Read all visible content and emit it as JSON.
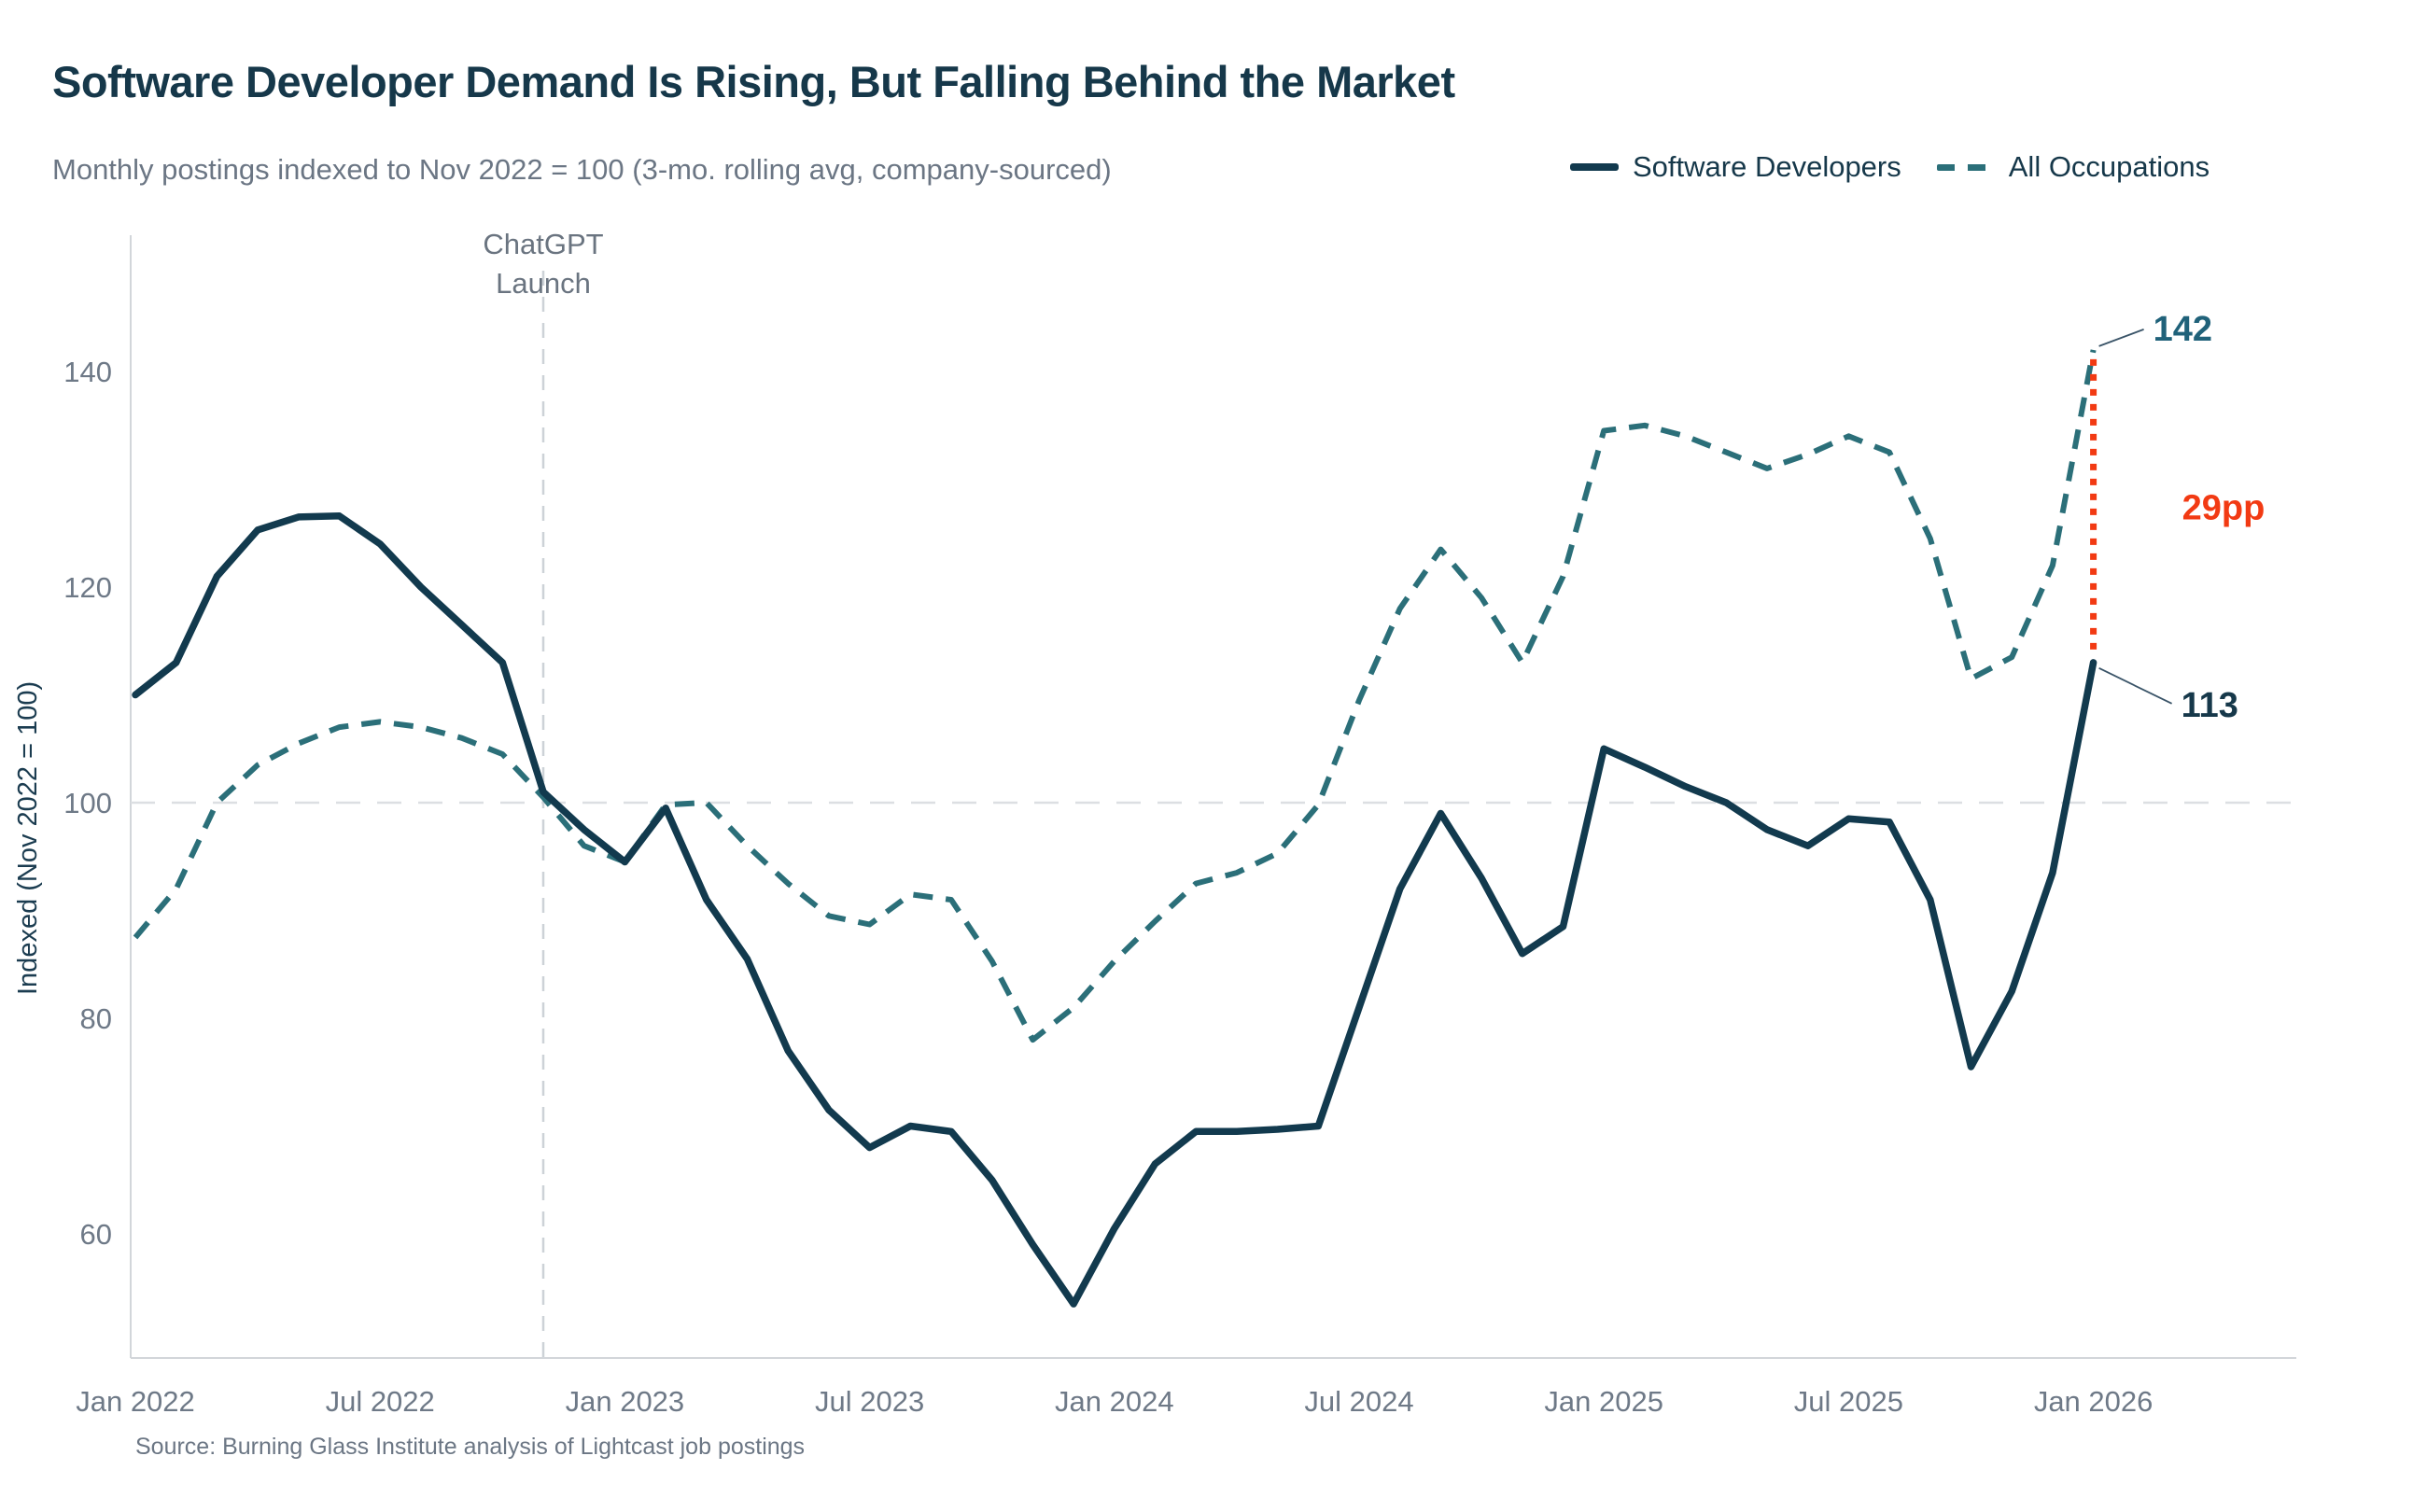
{
  "header": {
    "title": "Software Developer Demand Is Rising, But Falling Behind the Market",
    "subtitle": "Monthly postings indexed to Nov 2022 = 100 (3-mo. rolling avg, company-sourced)",
    "legend": [
      {
        "label": "Software Developers",
        "style": "solid",
        "color": "#123a4e"
      },
      {
        "label": "All Occupations",
        "style": "dashed",
        "color": "#2b6f79"
      }
    ]
  },
  "chart_data": {
    "type": "line",
    "x": {
      "start": "Jan 2022",
      "end": "Jan 2026",
      "frequency": "monthly",
      "count": 49
    },
    "x_tick_labels": [
      "Jan 2022",
      "Jul 2022",
      "Jan 2023",
      "Jul 2023",
      "Jan 2024",
      "Jul 2024",
      "Jan 2025",
      "Jul 2025",
      "Jan 2026"
    ],
    "x_tick_month_indexes": [
      0,
      6,
      12,
      18,
      24,
      30,
      36,
      42,
      48
    ],
    "ylabel": "Indexed (Nov 2022 = 100)",
    "yticks": [
      60,
      80,
      100,
      120,
      140
    ],
    "ylim": [
      48.5,
      153
    ],
    "reference_line_y": 100,
    "grid": "horizontal-100-only",
    "legend_position": "top-right-inline",
    "series": [
      {
        "name": "Software Developers",
        "color": "#123a4e",
        "line_style": "solid",
        "values": [
          110,
          113,
          121,
          125.3,
          126.5,
          126.6,
          124,
          120,
          116.5,
          113,
          101,
          97.5,
          94.5,
          99.5,
          91,
          85.5,
          77,
          71.5,
          68,
          70,
          69.5,
          65,
          59,
          53.5,
          60.5,
          66.5,
          69.5,
          69.5,
          69.7,
          70,
          81,
          92,
          99,
          93,
          86,
          88.5,
          105,
          103.3,
          101.5,
          100,
          97.5,
          96,
          98.5,
          98.2,
          91,
          75.5,
          82.5,
          93.5,
          113
        ]
      },
      {
        "name": "All Occupations",
        "color": "#2b6f79",
        "line_style": "dashed",
        "values": [
          87.5,
          92,
          100,
          103.5,
          105.5,
          107,
          107.5,
          107,
          106,
          104.5,
          100.5,
          96,
          94.5,
          99.8,
          100,
          96,
          92.5,
          89.5,
          88.7,
          91.5,
          91,
          85.3,
          78,
          81,
          85.3,
          89,
          92.5,
          93.5,
          95.3,
          99.8,
          109.5,
          118,
          123.5,
          119,
          113,
          121,
          134.5,
          135,
          134,
          132.5,
          131,
          132.3,
          134,
          132.5,
          124.5,
          111.5,
          113.5,
          122,
          142
        ]
      }
    ],
    "annotations": {
      "chatgpt_launch": {
        "text_lines": [
          "ChatGPT",
          "Launch"
        ],
        "month": "Nov 2022",
        "month_index": 10
      },
      "end_value_labels": [
        {
          "text": "142",
          "series": "All Occupations",
          "value": 142,
          "color": "#20627a"
        },
        {
          "text": "113",
          "series": "Software Developers",
          "value": 113,
          "color": "#16384a"
        }
      ],
      "gap_label": {
        "text": "29pp",
        "gap_points": 29,
        "color": "#f23a13"
      }
    }
  },
  "footer": {
    "source": "Source: Burning Glass Institute analysis of Lightcast job postings"
  }
}
